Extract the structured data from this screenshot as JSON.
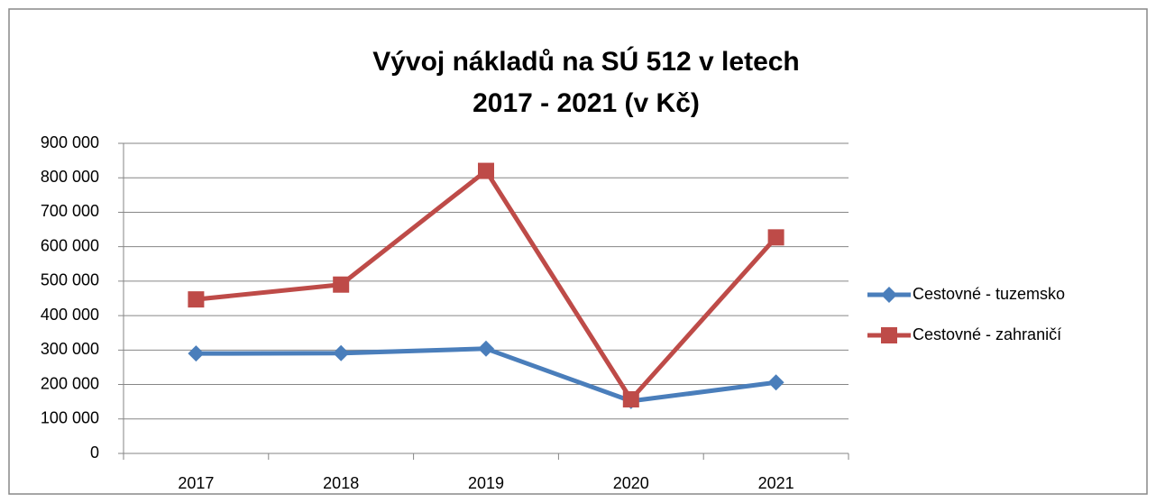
{
  "chart_data": {
    "type": "line",
    "title": [
      "Vývoj nákladů na SÚ 512 v letech",
      "2017 - 2021 (v Kč)"
    ],
    "categories": [
      "2017",
      "2018",
      "2019",
      "2020",
      "2021"
    ],
    "series": [
      {
        "name": "Cestovné - tuzemsko",
        "color": "#4a7ebb",
        "marker": "diamond",
        "values": [
          290000,
          291000,
          304000,
          152000,
          206000
        ]
      },
      {
        "name": "Cestovné - zahraničí",
        "color": "#be4b48",
        "marker": "square",
        "values": [
          447000,
          490000,
          820000,
          157000,
          627000
        ]
      }
    ],
    "ylim": [
      0,
      900000
    ],
    "yticks": [
      0,
      {
        "value": 100000,
        "label": "100 000"
      },
      {
        "value": 200000,
        "label": "200 000"
      },
      {
        "value": 300000,
        "label": "300 000"
      },
      {
        "value": 400000,
        "label": "400 000"
      },
      {
        "value": 500000,
        "label": "500 000"
      },
      {
        "value": 600000,
        "label": "600 000"
      },
      {
        "value": 700000,
        "label": "700 000"
      },
      {
        "value": 800000,
        "label": "800 000"
      },
      {
        "value": 900000,
        "label": "900 000"
      }
    ],
    "grid": true,
    "legend": "right"
  }
}
